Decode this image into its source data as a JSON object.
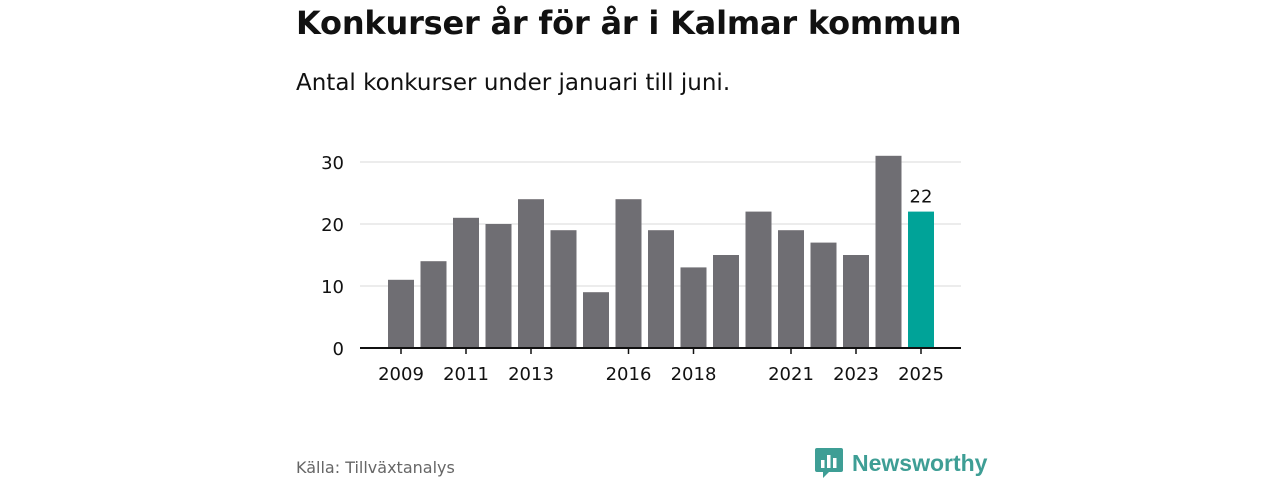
{
  "chart_data": {
    "type": "bar",
    "title": "Konkurser år för år i Kalmar kommun",
    "subtitle": "Antal konkurser under januari till juni.",
    "categories": [
      "2009",
      "2010",
      "2011",
      "2012",
      "2013",
      "2014",
      "2015",
      "2016",
      "2017",
      "2018",
      "2019",
      "2020",
      "2021",
      "2022",
      "2023",
      "2024",
      "2025"
    ],
    "values": [
      11,
      14,
      21,
      20,
      24,
      19,
      9,
      24,
      19,
      13,
      15,
      22,
      19,
      17,
      15,
      31,
      22
    ],
    "x_tick_labels": [
      "2009",
      "2011",
      "2013",
      "2016",
      "2018",
      "2021",
      "2023",
      "2025"
    ],
    "y_ticks": [
      "0",
      "10",
      "20",
      "30"
    ],
    "ylim": [
      0,
      31
    ],
    "grid": true,
    "bar_color": "#6f6e73",
    "highlight_color": "#00a398",
    "highlight_index": 16,
    "highlight_label": "22"
  },
  "footer": {
    "source": "Källa: Tillväxtanalys",
    "brand": "Newsworthy",
    "brand_icon": "newsworthy-logo-icon",
    "brand_color": "#3e9e95"
  }
}
